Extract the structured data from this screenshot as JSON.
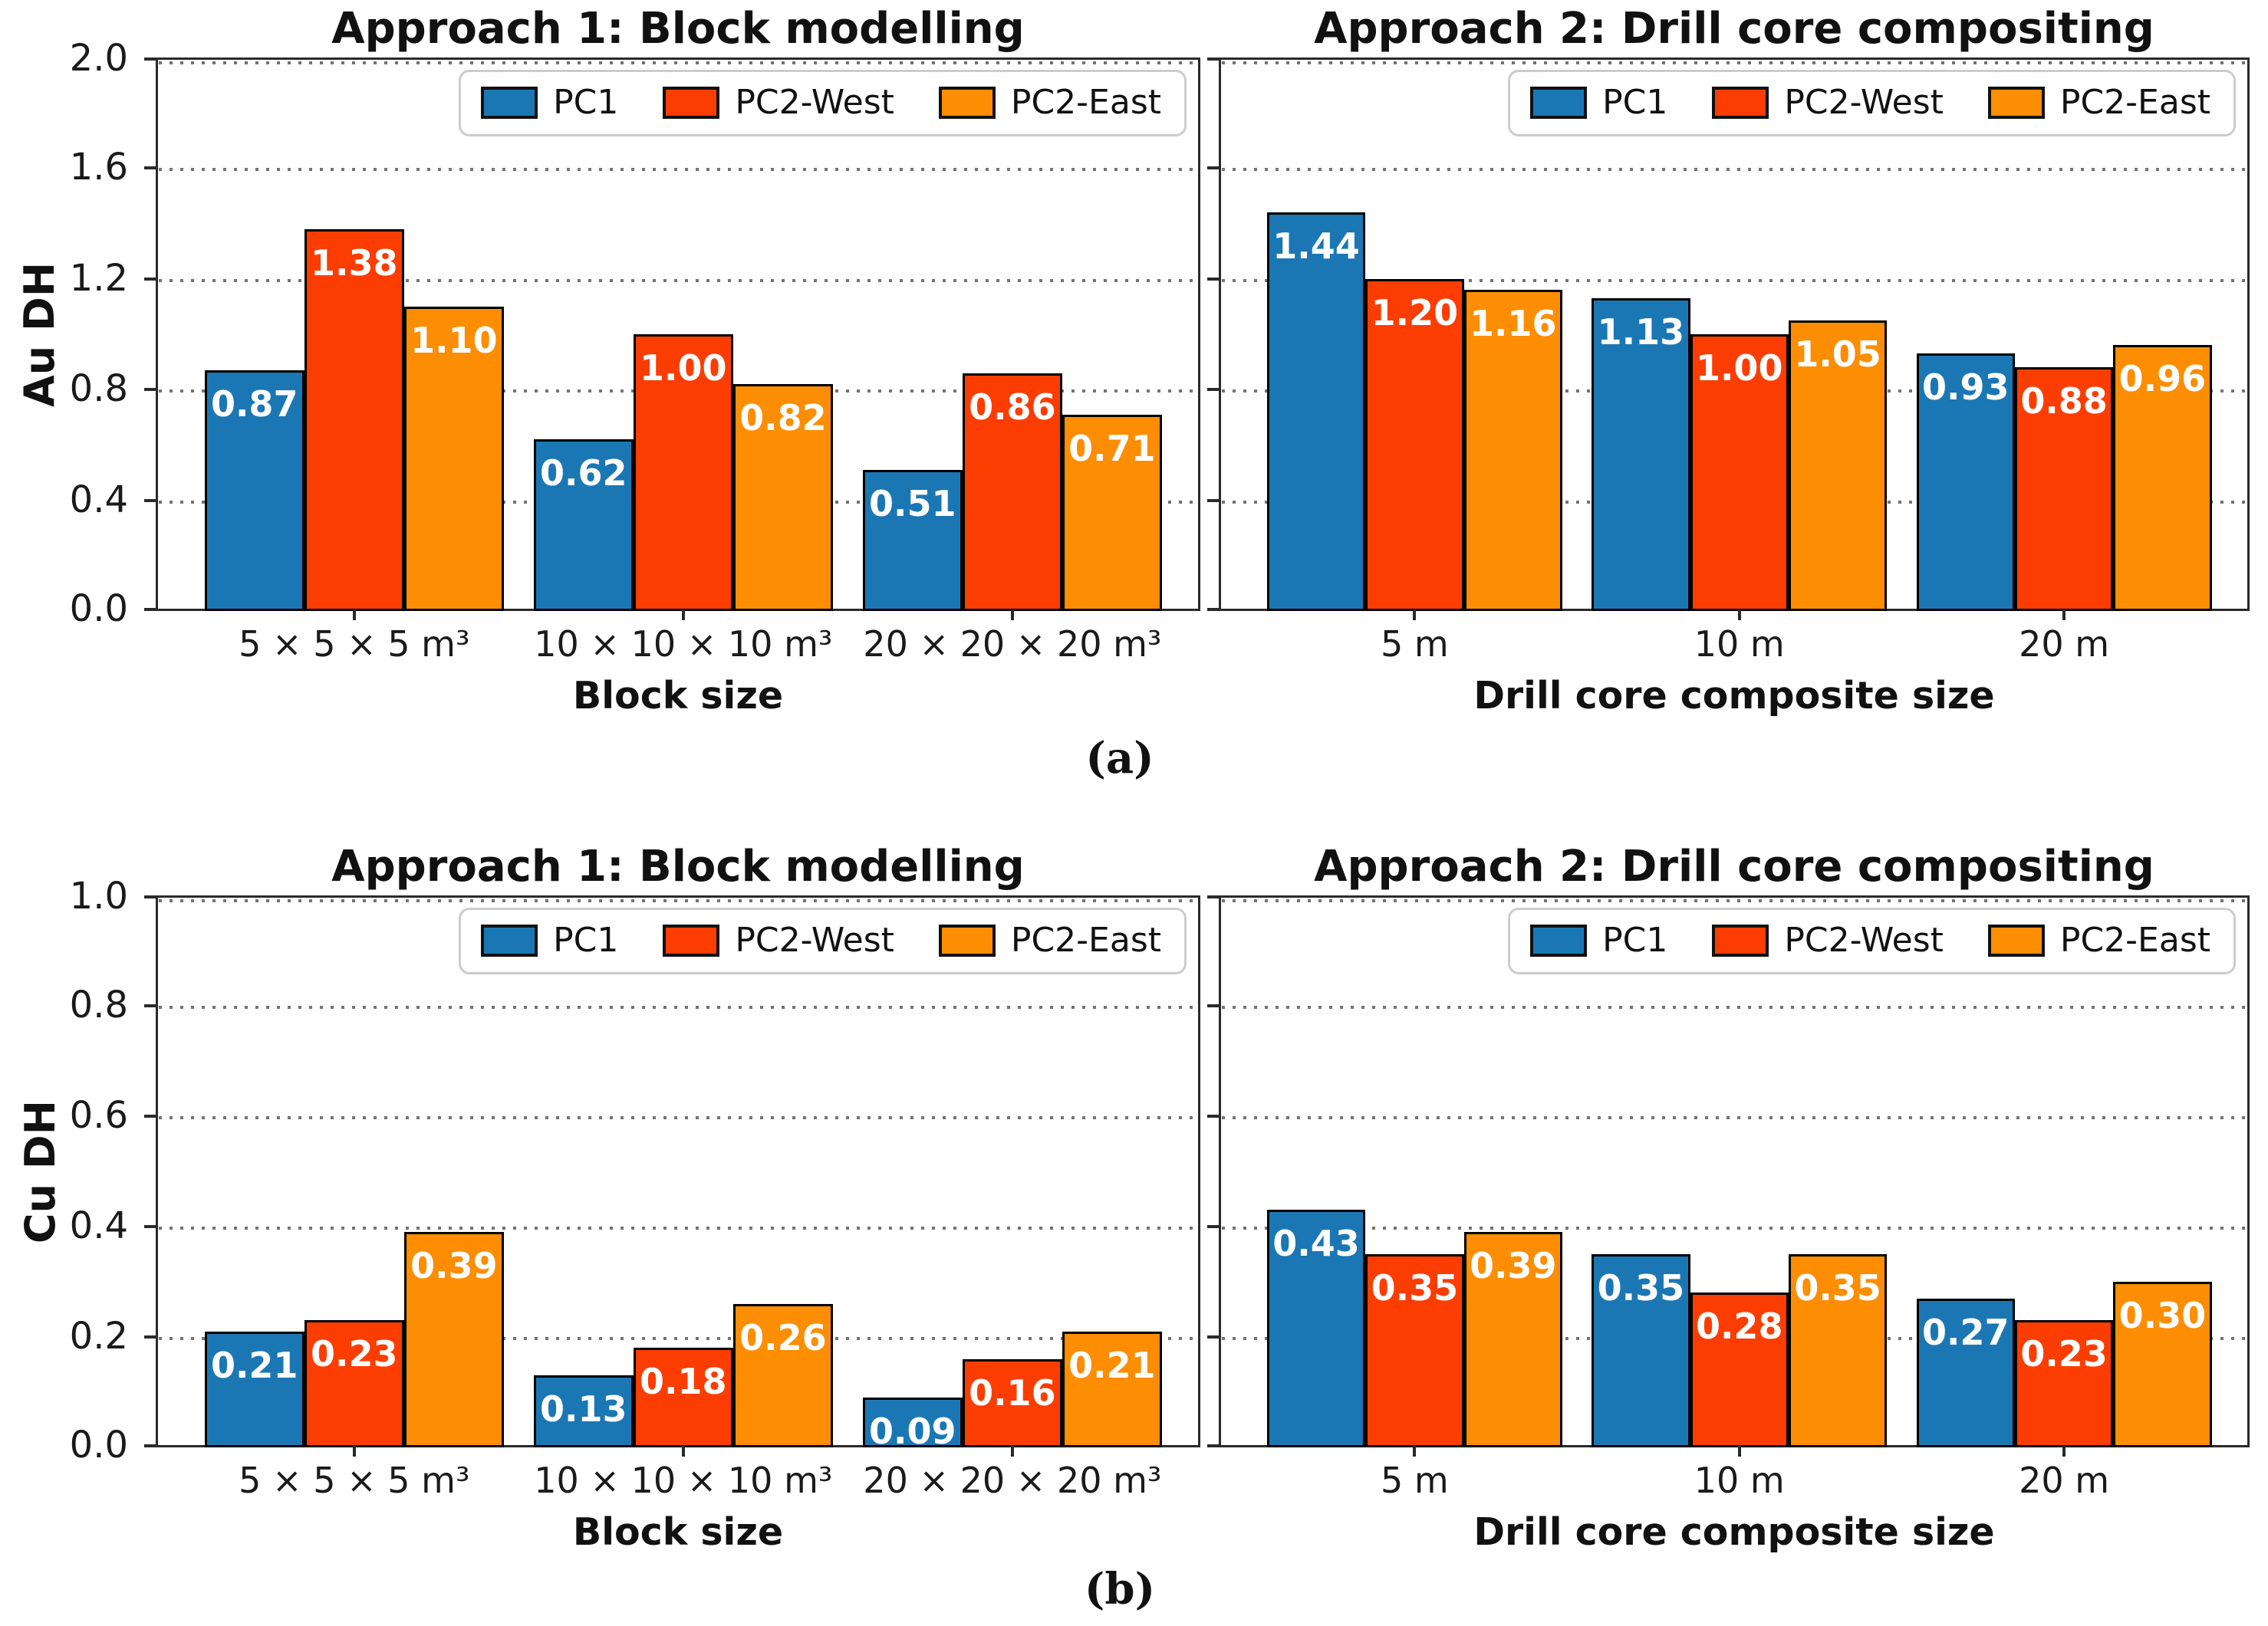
{
  "figure": {
    "captions": [
      "(a)",
      "(b)"
    ],
    "background": "#ffffff",
    "grid": "dotted-horizontal",
    "colors": {
      "pc1": "#1b77b4",
      "pc2_west": "#fb3d01",
      "pc2_east": "#fd8d02",
      "bar_edge": "#000000",
      "spine": "#2a2a2a",
      "value_label_text": "#ffffff"
    }
  },
  "chart_data": [
    {
      "type": "bar",
      "panel": "top-left",
      "title": "Approach 1: Block modelling",
      "xlabel": "Block size",
      "ylabel": "Au DH",
      "categories": [
        "5 × 5 × 5 m³",
        "10 × 10 × 10 m³",
        "20 × 20 × 20 m³"
      ],
      "series": [
        {
          "name": "PC1",
          "color": "#1b77b4",
          "values": [
            0.87,
            0.62,
            0.51
          ]
        },
        {
          "name": "PC2-West",
          "color": "#fb3d01",
          "values": [
            1.38,
            1.0,
            0.86
          ]
        },
        {
          "name": "PC2-East",
          "color": "#fd8d02",
          "values": [
            1.1,
            0.82,
            0.71
          ]
        }
      ],
      "ylim": [
        0.0,
        2.0
      ],
      "yticks": [
        0.0,
        0.4,
        0.8,
        1.2,
        1.6,
        2.0
      ],
      "ytick_labels": [
        "0.0",
        "0.4",
        "0.8",
        "1.2",
        "1.6",
        "2.0"
      ],
      "show_ytick_labels": true,
      "grid": "dotted-horizontal",
      "legend_position": "upper right",
      "value_labels": true
    },
    {
      "type": "bar",
      "panel": "top-right",
      "title": "Approach 2: Drill core compositing",
      "xlabel": "Drill core composite size",
      "ylabel": "",
      "categories": [
        "5 m",
        "10 m",
        "20 m"
      ],
      "series": [
        {
          "name": "PC1",
          "color": "#1b77b4",
          "values": [
            1.44,
            1.13,
            0.93
          ]
        },
        {
          "name": "PC2-West",
          "color": "#fb3d01",
          "values": [
            1.2,
            1.0,
            0.88
          ]
        },
        {
          "name": "PC2-East",
          "color": "#fd8d02",
          "values": [
            1.16,
            1.05,
            0.96
          ]
        }
      ],
      "ylim": [
        0.0,
        2.0
      ],
      "yticks": [
        0.0,
        0.4,
        0.8,
        1.2,
        1.6,
        2.0
      ],
      "ytick_labels": [
        "0.0",
        "0.4",
        "0.8",
        "1.2",
        "1.6",
        "2.0"
      ],
      "show_ytick_labels": false,
      "grid": "dotted-horizontal",
      "legend_position": "upper right",
      "value_labels": true
    },
    {
      "type": "bar",
      "panel": "bottom-left",
      "title": "Approach 1: Block modelling",
      "xlabel": "Block size",
      "ylabel": "Cu DH",
      "categories": [
        "5 × 5 × 5 m³",
        "10 × 10 × 10 m³",
        "20 × 20 × 20 m³"
      ],
      "series": [
        {
          "name": "PC1",
          "color": "#1b77b4",
          "values": [
            0.21,
            0.13,
            0.09
          ]
        },
        {
          "name": "PC2-West",
          "color": "#fb3d01",
          "values": [
            0.23,
            0.18,
            0.16
          ]
        },
        {
          "name": "PC2-East",
          "color": "#fd8d02",
          "values": [
            0.39,
            0.26,
            0.21
          ]
        }
      ],
      "ylim": [
        0.0,
        1.0
      ],
      "yticks": [
        0.0,
        0.2,
        0.4,
        0.6,
        0.8,
        1.0
      ],
      "ytick_labels": [
        "0.0",
        "0.2",
        "0.4",
        "0.6",
        "0.8",
        "1.0"
      ],
      "show_ytick_labels": true,
      "grid": "dotted-horizontal",
      "legend_position": "upper right",
      "value_labels": true
    },
    {
      "type": "bar",
      "panel": "bottom-right",
      "title": "Approach 2: Drill core compositing",
      "xlabel": "Drill core composite size",
      "ylabel": "",
      "categories": [
        "5 m",
        "10 m",
        "20 m"
      ],
      "series": [
        {
          "name": "PC1",
          "color": "#1b77b4",
          "values": [
            0.43,
            0.35,
            0.27
          ]
        },
        {
          "name": "PC2-West",
          "color": "#fb3d01",
          "values": [
            0.35,
            0.28,
            0.23
          ]
        },
        {
          "name": "PC2-East",
          "color": "#fd8d02",
          "values": [
            0.39,
            0.35,
            0.3
          ]
        }
      ],
      "ylim": [
        0.0,
        1.0
      ],
      "yticks": [
        0.0,
        0.2,
        0.4,
        0.6,
        0.8,
        1.0
      ],
      "ytick_labels": [
        "0.0",
        "0.2",
        "0.4",
        "0.6",
        "0.8",
        "1.0"
      ],
      "show_ytick_labels": false,
      "grid": "dotted-horizontal",
      "legend_position": "upper right",
      "value_labels": true
    }
  ]
}
